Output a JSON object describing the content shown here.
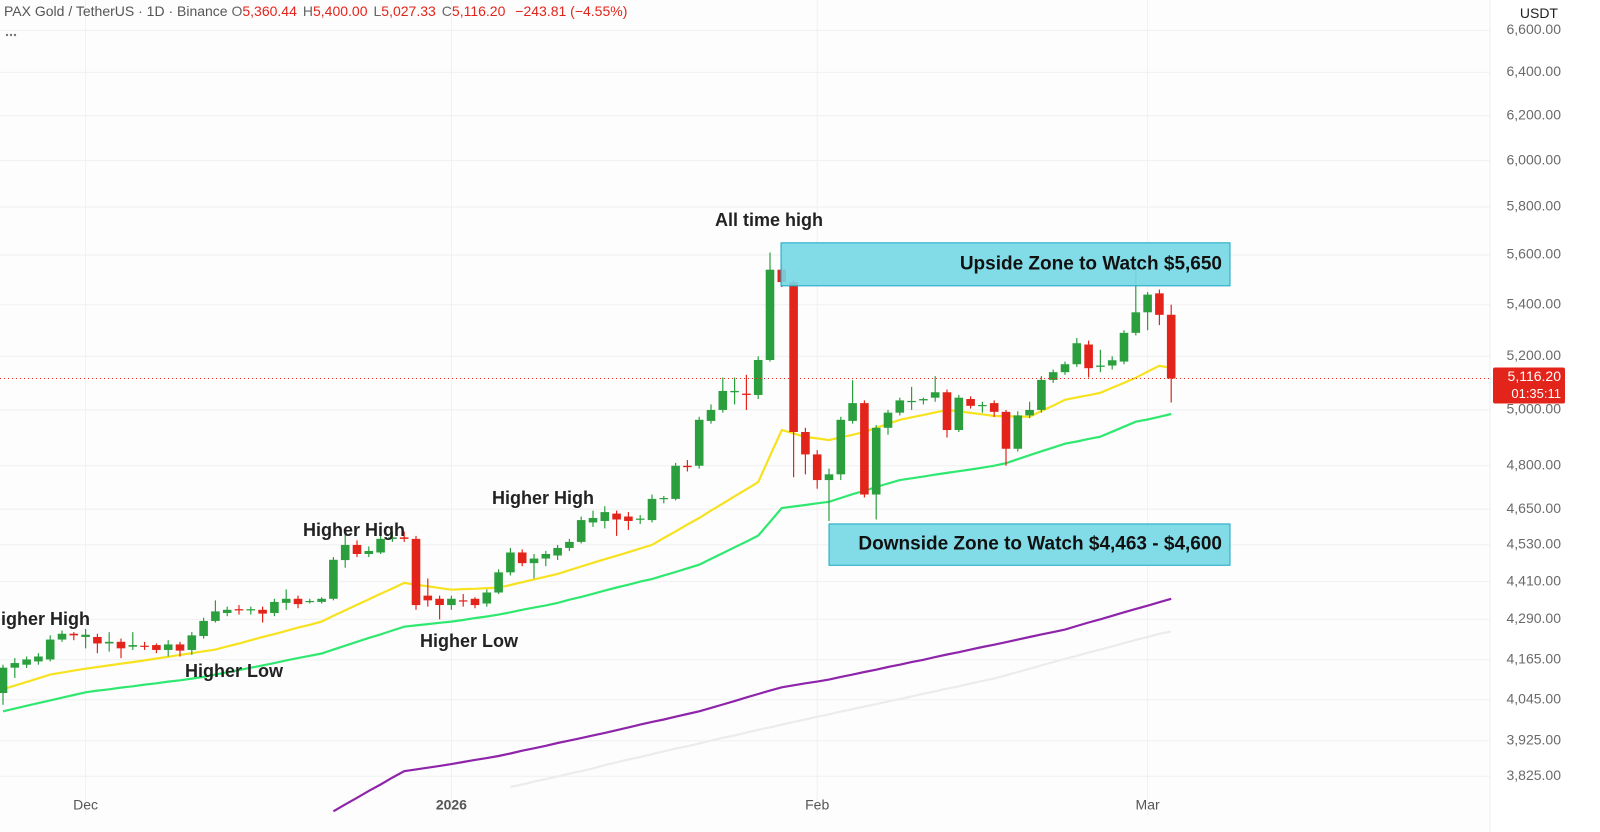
{
  "chart_data": {
    "type": "candlestick",
    "header": {
      "title": "PAX Gold / TetherUS · 1D · Binance",
      "keys": [
        "O",
        "H",
        "L",
        "C"
      ],
      "value_labels": [
        "5,360.44",
        "5,400.00",
        "5,027.33",
        "5,116.20"
      ],
      "change": "−243.81 (−4.55%)"
    },
    "currency": "USDT",
    "categories": [
      null,
      null,
      null,
      null,
      null,
      null,
      null,
      "Dec",
      null,
      null,
      null,
      null,
      null,
      null,
      null,
      null,
      null,
      null,
      null,
      null,
      null,
      null,
      null,
      null,
      null,
      null,
      null,
      null,
      null,
      null,
      null,
      null,
      null,
      null,
      null,
      null,
      null,
      null,
      "2026",
      null,
      null,
      null,
      null,
      null,
      null,
      null,
      null,
      null,
      null,
      null,
      null,
      null,
      null,
      null,
      null,
      null,
      null,
      null,
      null,
      null,
      null,
      null,
      null,
      null,
      null,
      null,
      null,
      null,
      null,
      "Feb",
      null,
      null,
      null,
      null,
      null,
      null,
      null,
      null,
      null,
      null,
      null,
      null,
      null,
      null,
      null,
      null,
      null,
      null,
      null,
      null,
      null,
      null,
      null,
      null,
      null,
      null,
      null,
      "Mar",
      null,
      null
    ],
    "open": [
      4065,
      4141,
      4150,
      4160,
      4166,
      4227,
      4245,
      4235,
      4235,
      4215,
      4220,
      4205,
      4208,
      4210,
      4195,
      4212,
      4195,
      4238,
      4285,
      4310,
      4322,
      4318,
      4320,
      4310,
      4342,
      4355,
      4345,
      4345,
      4355,
      4480,
      4530,
      4500,
      4505,
      4550,
      4555,
      4550,
      4365,
      4355,
      4335,
      4350,
      4355,
      4340,
      4375,
      4440,
      4505,
      4470,
      4485,
      4495,
      4520,
      4540,
      4605,
      4610,
      4635,
      4625,
      4615,
      4613,
      4685,
      4685,
      4800,
      4800,
      4960,
      5000,
      5065,
      5060,
      5055,
      5186,
      5540,
      5490,
      4920,
      4840,
      4750,
      4770,
      4960,
      5025,
      4700,
      4935,
      4990,
      5030,
      5035,
      5045,
      5065,
      4927,
      5040,
      5015,
      5025,
      4993,
      4860,
      4980,
      5000,
      5111,
      5140,
      5170,
      5245,
      5160,
      5165,
      5180,
      5290,
      5370,
      5445,
      5360.44
    ],
    "high": [
      4150,
      4170,
      4175,
      4185,
      4240,
      4255,
      4250,
      4260,
      4245,
      4250,
      4230,
      4250,
      4220,
      4215,
      4225,
      4220,
      4250,
      4295,
      4350,
      4330,
      4335,
      4330,
      4330,
      4355,
      4385,
      4365,
      4355,
      4360,
      4490,
      4580,
      4545,
      4525,
      4560,
      4575,
      4575,
      4560,
      4420,
      4365,
      4365,
      4370,
      4360,
      4385,
      4450,
      4520,
      4515,
      4500,
      4510,
      4530,
      4550,
      4625,
      4645,
      4660,
      4645,
      4640,
      4630,
      4700,
      4695,
      4810,
      4820,
      4975,
      5020,
      5120,
      5120,
      5130,
      5200,
      5610,
      5560,
      5500,
      4935,
      4855,
      4790,
      4975,
      5110,
      5035,
      4945,
      5000,
      5045,
      5085,
      5045,
      5125,
      5075,
      5055,
      5050,
      5030,
      5035,
      5000,
      4995,
      5030,
      5125,
      5150,
      5180,
      5270,
      5260,
      5225,
      5200,
      5300,
      5540,
      5450,
      5460,
      5400
    ],
    "low": [
      4030,
      4110,
      4140,
      4150,
      4160,
      4220,
      4225,
      4200,
      4185,
      4190,
      4170,
      4195,
      4195,
      4185,
      4175,
      4175,
      4180,
      4230,
      4280,
      4300,
      4305,
      4305,
      4280,
      4300,
      4320,
      4325,
      4340,
      4340,
      4350,
      4455,
      4490,
      4490,
      4500,
      4540,
      4540,
      4320,
      4330,
      4290,
      4320,
      4330,
      4325,
      4330,
      4370,
      4430,
      4460,
      4420,
      4460,
      4480,
      4510,
      4535,
      4590,
      4585,
      4560,
      4580,
      4600,
      4605,
      4670,
      4680,
      4780,
      4790,
      4950,
      4990,
      5020,
      5000,
      5040,
      5180,
      5470,
      4760,
      4770,
      4720,
      4610,
      4750,
      4950,
      4690,
      4615,
      4910,
      4980,
      5000,
      5020,
      5030,
      4900,
      4920,
      5005,
      4990,
      4975,
      4800,
      4850,
      4970,
      4990,
      5100,
      5130,
      5160,
      5120,
      5140,
      5150,
      5170,
      5280,
      5300,
      5320,
      5027.33
    ],
    "close": [
      4141,
      4155,
      4166,
      4175,
      4227,
      4245,
      4240,
      4242,
      4215,
      4220,
      4200,
      4210,
      4205,
      4195,
      4212,
      4193,
      4240,
      4285,
      4315,
      4320,
      4318,
      4322,
      4308,
      4345,
      4355,
      4338,
      4348,
      4355,
      4481,
      4530,
      4500,
      4510,
      4550,
      4555,
      4550,
      4335,
      4350,
      4335,
      4355,
      4348,
      4335,
      4375,
      4440,
      4505,
      4470,
      4485,
      4500,
      4520,
      4540,
      4613,
      4620,
      4640,
      4615,
      4610,
      4618,
      4685,
      4688,
      4800,
      4795,
      4964,
      5000,
      5070,
      5070,
      5055,
      5186,
      5540,
      5490,
      4920,
      4840,
      4750,
      4770,
      4964,
      5025,
      4700,
      4935,
      4990,
      5035,
      5033,
      5040,
      5065,
      4927,
      5045,
      5015,
      5018,
      4993,
      4860,
      4980,
      5000,
      5111,
      5140,
      5170,
      5250,
      5155,
      5165,
      5185,
      5290,
      5370,
      5440,
      5360,
      5116.2
    ],
    "up_color": "#2b9f3e",
    "down_color": "#e3241b",
    "series": [
      {
        "color": "#f7e21f",
        "values": [
          4076,
          4087,
          4098,
          4109,
          4120,
          4126,
          4132,
          4138,
          4143,
          4148,
          4153,
          4158,
          4163,
          4169,
          4174,
          4180,
          4185,
          4191,
          4196,
          4206,
          4215,
          4225,
          4235,
          4244,
          4254,
          4264,
          4273,
          4283,
          4301,
          4318,
          4336,
          4353,
          4371,
          4388,
          4406,
          4400,
          4395,
          4389,
          4384,
          4386,
          4387,
          4389,
          4390,
          4399,
          4408,
          4417,
          4426,
          4435,
          4447,
          4459,
          4471,
          4483,
          4494,
          4506,
          4518,
          4530,
          4553,
          4575,
          4598,
          4620,
          4645,
          4669,
          4694,
          4718,
          4743,
          4835,
          4927,
          4915,
          4902,
          4897,
          4891,
          4901,
          4910,
          4920,
          4935,
          4949,
          4964,
          4973,
          4982,
          4991,
          5000,
          4995,
          4989,
          4984,
          4978,
          4977,
          4976,
          4975,
          4996,
          5016,
          5037,
          5046,
          5054,
          5063,
          5082,
          5100,
          5119,
          5142,
          5164,
          5156
        ]
      },
      {
        "color": "#2fe870",
        "values": [
          4011,
          4019,
          4027,
          4035,
          4043,
          4051,
          4059,
          4067,
          4072,
          4076,
          4081,
          4085,
          4090,
          4094,
          4099,
          4103,
          4108,
          4113,
          4120,
          4127,
          4134,
          4141,
          4148,
          4155,
          4163,
          4170,
          4177,
          4184,
          4196,
          4208,
          4220,
          4232,
          4243,
          4255,
          4267,
          4271,
          4275,
          4279,
          4283,
          4288,
          4294,
          4299,
          4305,
          4312,
          4320,
          4327,
          4334,
          4342,
          4352,
          4361,
          4371,
          4381,
          4391,
          4400,
          4410,
          4418,
          4430,
          4441,
          4453,
          4465,
          4484,
          4503,
          4522,
          4541,
          4561,
          4607,
          4654,
          4659,
          4664,
          4670,
          4675,
          4688,
          4701,
          4713,
          4726,
          4738,
          4750,
          4756,
          4762,
          4769,
          4775,
          4781,
          4787,
          4793,
          4800,
          4809,
          4823,
          4837,
          4851,
          4864,
          4878,
          4886,
          4895,
          4903,
          4921,
          4939,
          4957,
          4965,
          4975,
          4985
        ]
      },
      {
        "color": "#8e24aa",
        "values": [
          null,
          null,
          null,
          null,
          null,
          null,
          null,
          null,
          null,
          null,
          null,
          null,
          null,
          null,
          null,
          null,
          null,
          null,
          null,
          null,
          null,
          null,
          null,
          null,
          null,
          null,
          null,
          null,
          3728,
          3747,
          3765,
          3784,
          3802,
          3821,
          3839,
          3844,
          3849,
          3854,
          3859,
          3865,
          3871,
          3876,
          3882,
          3889,
          3897,
          3904,
          3911,
          3919,
          3926,
          3933,
          3941,
          3948,
          3956,
          3964,
          3972,
          3980,
          3987,
          3995,
          4003,
          4011,
          4021,
          4031,
          4041,
          4052,
          4062,
          4072,
          4082,
          4088,
          4094,
          4099,
          4105,
          4113,
          4120,
          4128,
          4135,
          4143,
          4150,
          4158,
          4165,
          4173,
          4181,
          4188,
          4196,
          4204,
          4211,
          4219,
          4227,
          4235,
          4243,
          4250,
          4258,
          4269,
          4280,
          4290,
          4301,
          4312,
          4323,
          4333,
          4344,
          4355
        ]
      },
      {
        "color": "#ececec",
        "values": [
          null,
          null,
          null,
          null,
          null,
          null,
          null,
          null,
          null,
          null,
          null,
          null,
          null,
          null,
          null,
          null,
          null,
          null,
          null,
          null,
          null,
          null,
          null,
          null,
          null,
          null,
          null,
          null,
          null,
          null,
          null,
          null,
          null,
          null,
          null,
          null,
          null,
          null,
          null,
          null,
          null,
          null,
          null,
          3795,
          3802,
          3810,
          3817,
          3824,
          3832,
          3839,
          3847,
          3856,
          3864,
          3872,
          3879,
          3887,
          3895,
          3903,
          3910,
          3918,
          3926,
          3934,
          3941,
          3949,
          3957,
          3964,
          3972,
          3980,
          3987,
          3995,
          4002,
          4010,
          4017,
          4025,
          4032,
          4040,
          4047,
          4055,
          4063,
          4070,
          4078,
          4085,
          4093,
          4101,
          4108,
          4118,
          4128,
          4138,
          4148,
          4158,
          4168,
          4177,
          4187,
          4196,
          4206,
          4216,
          4226,
          4235,
          4245,
          4252
        ]
      }
    ],
    "log_scale": true,
    "grid": true,
    "ylim": [
      3718,
      6650
    ],
    "yticks": [
      {
        "value": 6600,
        "label": "6,600.00"
      },
      {
        "value": 6400,
        "label": "6,400.00"
      },
      {
        "value": 6200,
        "label": "6,200.00"
      },
      {
        "value": 6000,
        "label": "6,000.00"
      },
      {
        "value": 5800,
        "label": "5,800.00"
      },
      {
        "value": 5600,
        "label": "5,600.00"
      },
      {
        "value": 5400,
        "label": "5,400.00"
      },
      {
        "value": 5200,
        "label": "5,200.00"
      },
      {
        "value": 5000,
        "label": "5,000.00"
      },
      {
        "value": 4800,
        "label": "4,800.00"
      },
      {
        "value": 4650,
        "label": "4,650.00"
      },
      {
        "value": 4530,
        "label": "4,530.00"
      },
      {
        "value": 4410,
        "label": "4,410.00"
      },
      {
        "value": 4290,
        "label": "4,290.00"
      },
      {
        "value": 4165,
        "label": "4,165.00"
      },
      {
        "value": 4045,
        "label": "4,045.00"
      },
      {
        "value": 3925,
        "label": "3,925.00"
      },
      {
        "value": 3825,
        "label": "3,825.00"
      }
    ],
    "last_price": 5116.2,
    "last_price_label": "5,116.20",
    "countdown": "01:35:11",
    "zones": [
      {
        "label": "Upside Zone to Watch $5,650",
        "range": [
          5475,
          5650
        ]
      },
      {
        "label": "Downside Zone to Watch $4,463 - $4,600",
        "range": [
          4463,
          4600
        ]
      }
    ],
    "zone_color": "#74d8e6",
    "zone_border": "#1aa6c4",
    "annotations": [
      "Higher High",
      "Higher Low",
      "Higher High",
      "Higher Low",
      "Higher High",
      "All time high"
    ]
  }
}
